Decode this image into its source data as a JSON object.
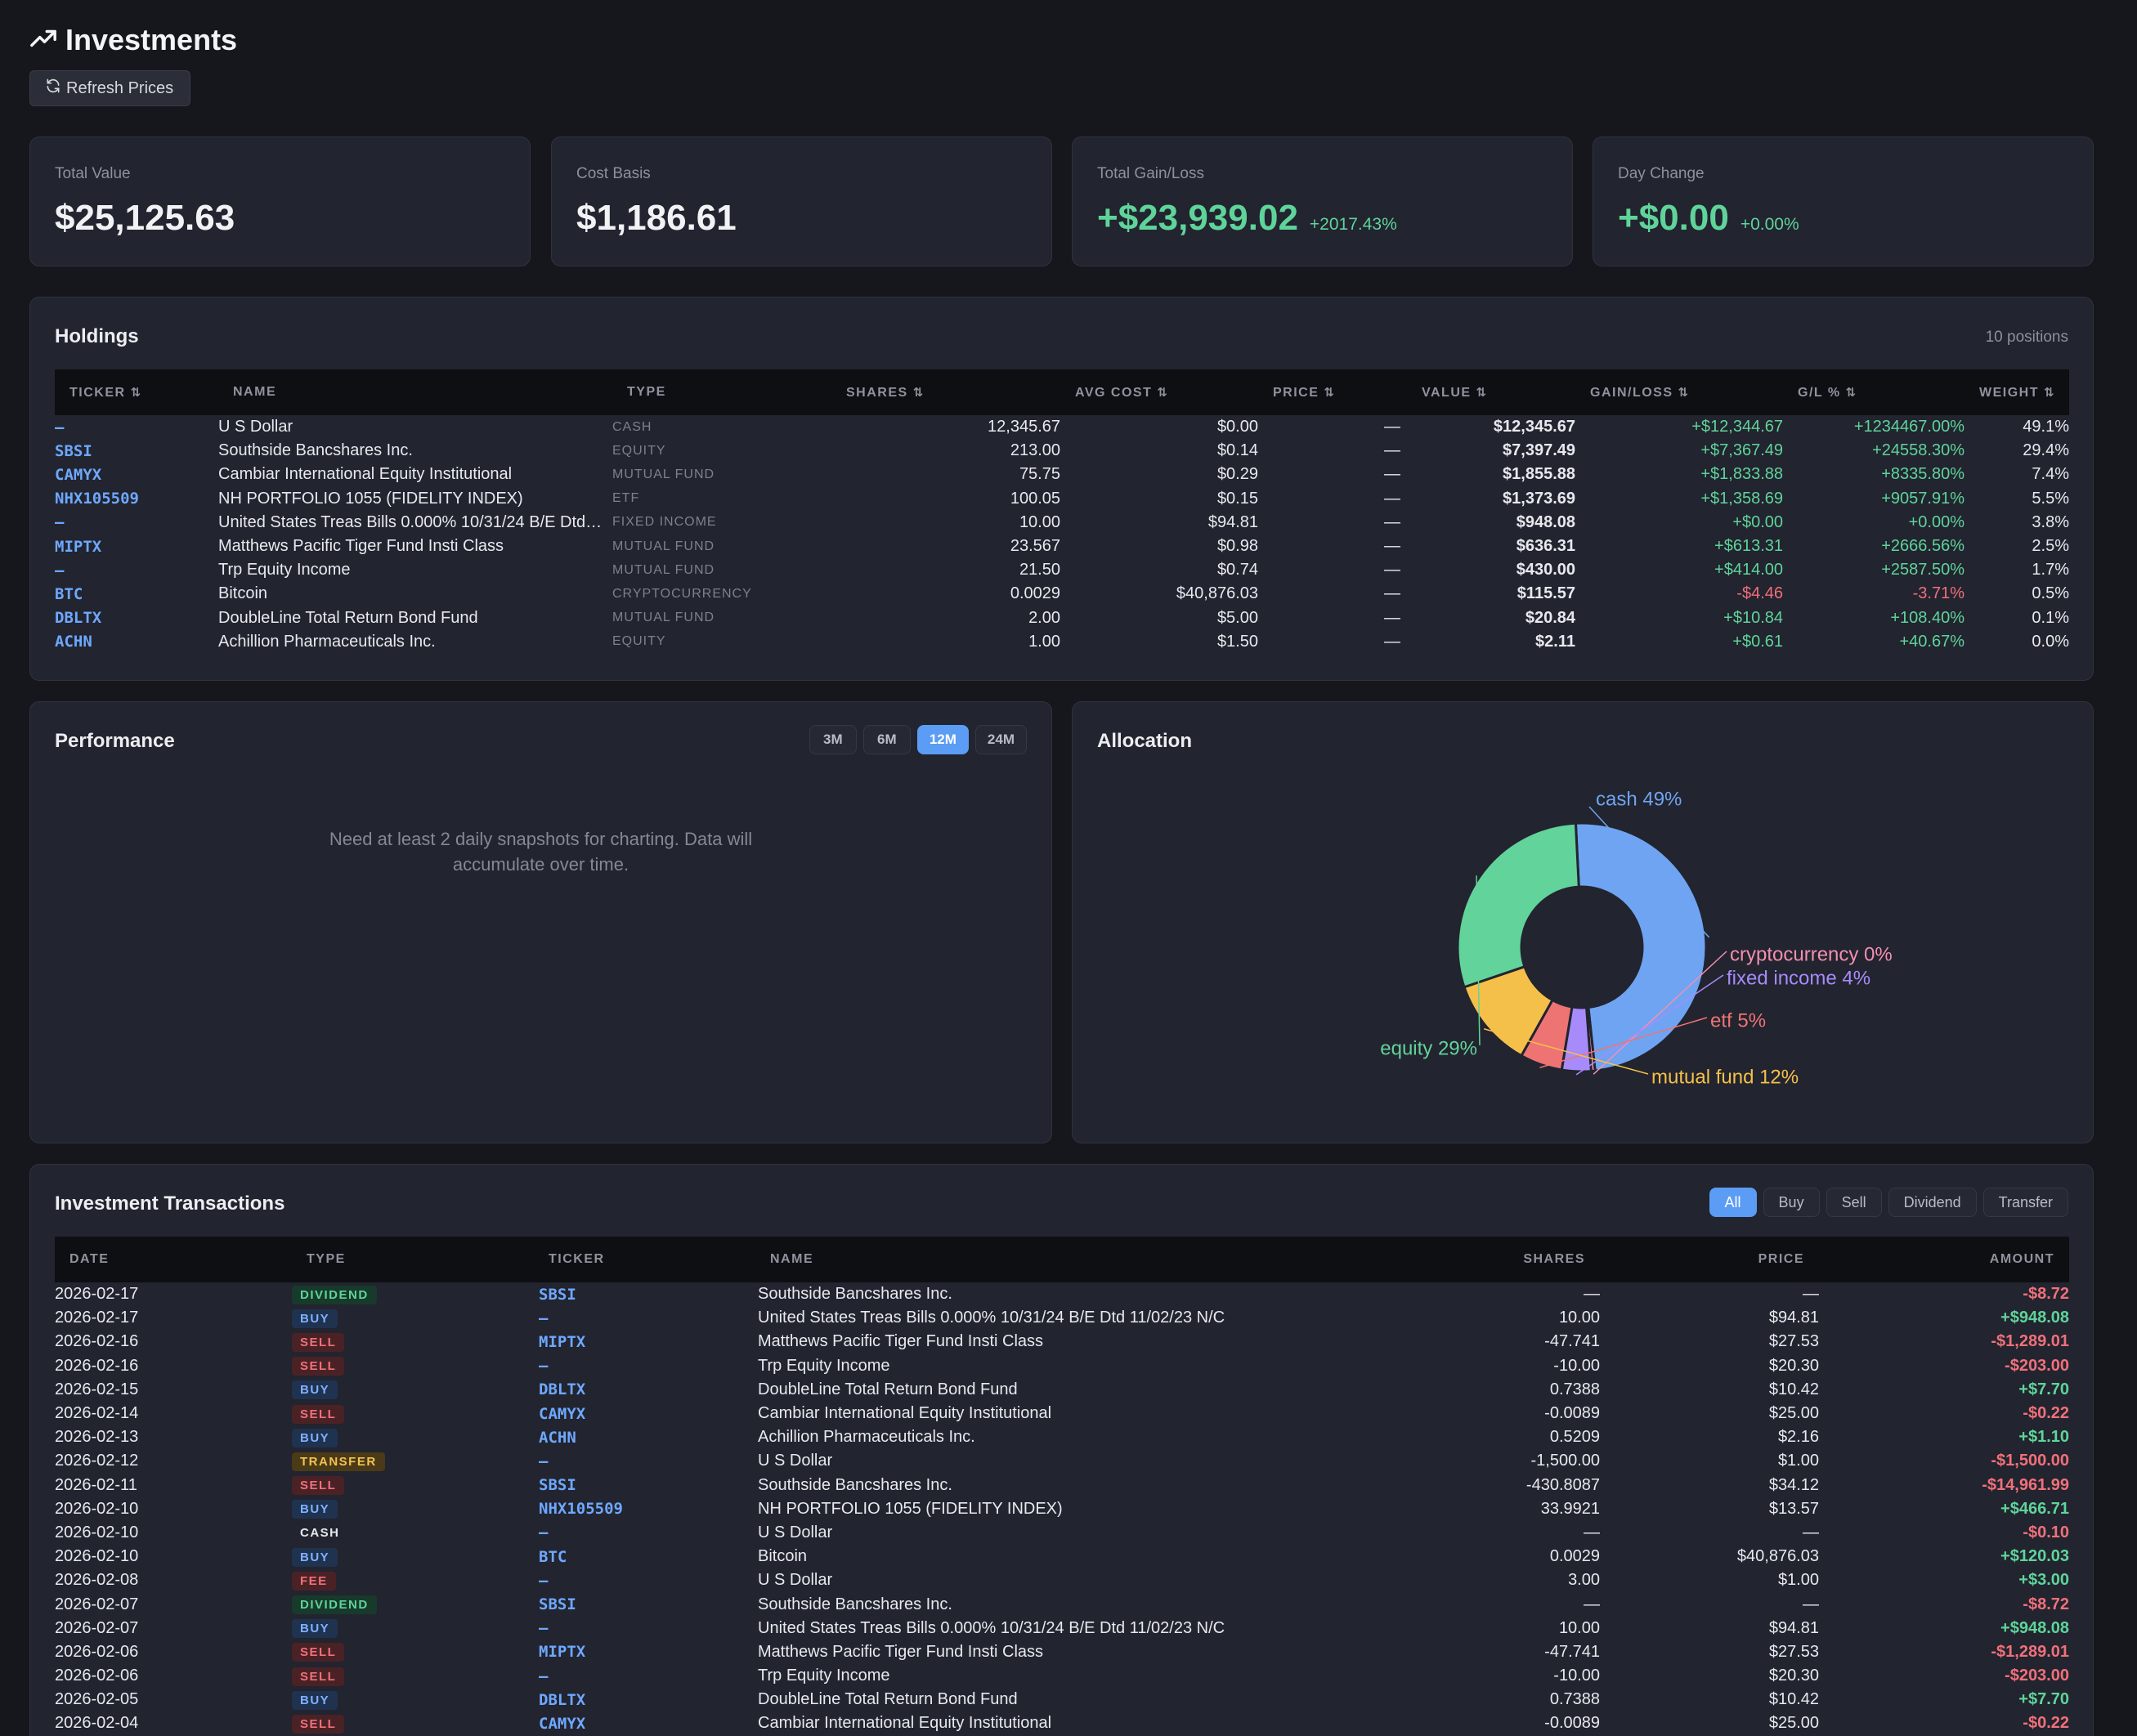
{
  "header": {
    "title": "Investments",
    "refresh_label": "Refresh Prices"
  },
  "stats": [
    {
      "label": "Total Value",
      "value": "$25,125.63",
      "pct": ""
    },
    {
      "label": "Cost Basis",
      "value": "$1,186.61",
      "pct": ""
    },
    {
      "label": "Total Gain/Loss",
      "value": "+$23,939.02",
      "pct": "+2017.43%"
    },
    {
      "label": "Day Change",
      "value": "+$0.00",
      "pct": "+0.00%"
    }
  ],
  "holdings": {
    "title": "Holdings",
    "count": "10 positions",
    "columns": [
      "Ticker",
      "Name",
      "Type",
      "Shares",
      "Avg Cost",
      "Price",
      "Value",
      "Gain/Loss",
      "G/L %",
      "Weight"
    ],
    "sortable": [
      true,
      false,
      false,
      true,
      true,
      true,
      true,
      true,
      true,
      true
    ],
    "rows": [
      [
        "—",
        "U S Dollar",
        "CASH",
        "12,345.67",
        "$0.00",
        "—",
        "$12,345.67",
        "+$12,344.67",
        "+1234467.00%",
        "49.1%"
      ],
      [
        "SBSI",
        "Southside Bancshares Inc.",
        "EQUITY",
        "213.00",
        "$0.14",
        "—",
        "$7,397.49",
        "+$7,367.49",
        "+24558.30%",
        "29.4%"
      ],
      [
        "CAMYX",
        "Cambiar International Equity Institutional",
        "MUTUAL FUND",
        "75.75",
        "$0.29",
        "—",
        "$1,855.88",
        "+$1,833.88",
        "+8335.80%",
        "7.4%"
      ],
      [
        "NHX105509",
        "NH PORTFOLIO 1055 (FIDELITY INDEX)",
        "ETF",
        "100.05",
        "$0.15",
        "—",
        "$1,373.69",
        "+$1,358.69",
        "+9057.91%",
        "5.5%"
      ],
      [
        "—",
        "United States Treas Bills 0.000% 10/31/24 B/E Dtd 11/02/23 N/C",
        "FIXED INCOME",
        "10.00",
        "$94.81",
        "—",
        "$948.08",
        "+$0.00",
        "+0.00%",
        "3.8%"
      ],
      [
        "MIPTX",
        "Matthews Pacific Tiger Fund Insti Class",
        "MUTUAL FUND",
        "23.567",
        "$0.98",
        "—",
        "$636.31",
        "+$613.31",
        "+2666.56%",
        "2.5%"
      ],
      [
        "—",
        "Trp Equity Income",
        "MUTUAL FUND",
        "21.50",
        "$0.74",
        "—",
        "$430.00",
        "+$414.00",
        "+2587.50%",
        "1.7%"
      ],
      [
        "BTC",
        "Bitcoin",
        "CRYPTOCURRENCY",
        "0.0029",
        "$40,876.03",
        "—",
        "$115.57",
        "-$4.46",
        "-3.71%",
        "0.5%"
      ],
      [
        "DBLTX",
        "DoubleLine Total Return Bond Fund",
        "MUTUAL FUND",
        "2.00",
        "$5.00",
        "—",
        "$20.84",
        "+$10.84",
        "+108.40%",
        "0.1%"
      ],
      [
        "ACHN",
        "Achillion Pharmaceuticals Inc.",
        "EQUITY",
        "1.00",
        "$1.50",
        "—",
        "$2.11",
        "+$0.61",
        "+40.67%",
        "0.0%"
      ]
    ]
  },
  "performance": {
    "title": "Performance",
    "ranges": [
      "3M",
      "6M",
      "12M",
      "24M"
    ],
    "active_range": "12M",
    "empty_message": "Need at least 2 daily snapshots for charting. Data will accumulate over time."
  },
  "allocation": {
    "title": "Allocation",
    "slices": [
      {
        "label": "cash 49%",
        "value": 49.1,
        "color": "#6fa4f2"
      },
      {
        "label": "cryptocurrency 0%",
        "value": 0.5,
        "color": "#f48fb1"
      },
      {
        "label": "fixed income 4%",
        "value": 3.8,
        "color": "#a78bfa"
      },
      {
        "label": "etf 5%",
        "value": 5.5,
        "color": "#ee7474"
      },
      {
        "label": "mutual fund 12%",
        "value": 11.7,
        "color": "#f5c04a"
      },
      {
        "label": "equity 29%",
        "value": 29.4,
        "color": "#62d39a"
      }
    ]
  },
  "transactions": {
    "title": "Investment Transactions",
    "filters": [
      "All",
      "Buy",
      "Sell",
      "Dividend",
      "Transfer"
    ],
    "active_filter": "All",
    "columns": [
      "Date",
      "Type",
      "Ticker",
      "Name",
      "Shares",
      "Price",
      "Amount"
    ],
    "rows": [
      [
        "2026-02-17",
        "DIVIDEND",
        "SBSI",
        "Southside Bancshares Inc.",
        "—",
        "—",
        "-$8.72"
      ],
      [
        "2026-02-17",
        "BUY",
        "—",
        "United States Treas Bills 0.000% 10/31/24 B/E Dtd 11/02/23 N/C",
        "10.00",
        "$94.81",
        "+$948.08"
      ],
      [
        "2026-02-16",
        "SELL",
        "MIPTX",
        "Matthews Pacific Tiger Fund Insti Class",
        "-47.741",
        "$27.53",
        "-$1,289.01"
      ],
      [
        "2026-02-16",
        "SELL",
        "—",
        "Trp Equity Income",
        "-10.00",
        "$20.30",
        "-$203.00"
      ],
      [
        "2026-02-15",
        "BUY",
        "DBLTX",
        "DoubleLine Total Return Bond Fund",
        "0.7388",
        "$10.42",
        "+$7.70"
      ],
      [
        "2026-02-14",
        "SELL",
        "CAMYX",
        "Cambiar International Equity Institutional",
        "-0.0089",
        "$25.00",
        "-$0.22"
      ],
      [
        "2026-02-13",
        "BUY",
        "ACHN",
        "Achillion Pharmaceuticals Inc.",
        "0.5209",
        "$2.16",
        "+$1.10"
      ],
      [
        "2026-02-12",
        "TRANSFER",
        "—",
        "U S Dollar",
        "-1,500.00",
        "$1.00",
        "-$1,500.00"
      ],
      [
        "2026-02-11",
        "SELL",
        "SBSI",
        "Southside Bancshares Inc.",
        "-430.8087",
        "$34.12",
        "-$14,961.99"
      ],
      [
        "2026-02-10",
        "BUY",
        "NHX105509",
        "NH PORTFOLIO 1055 (FIDELITY INDEX)",
        "33.9921",
        "$13.57",
        "+$466.71"
      ],
      [
        "2026-02-10",
        "CASH",
        "—",
        "U S Dollar",
        "—",
        "—",
        "-$0.10"
      ],
      [
        "2026-02-10",
        "BUY",
        "BTC",
        "Bitcoin",
        "0.0029",
        "$40,876.03",
        "+$120.03"
      ],
      [
        "2026-02-08",
        "FEE",
        "—",
        "U S Dollar",
        "3.00",
        "$1.00",
        "+$3.00"
      ],
      [
        "2026-02-07",
        "DIVIDEND",
        "SBSI",
        "Southside Bancshares Inc.",
        "—",
        "—",
        "-$8.72"
      ],
      [
        "2026-02-07",
        "BUY",
        "—",
        "United States Treas Bills 0.000% 10/31/24 B/E Dtd 11/02/23 N/C",
        "10.00",
        "$94.81",
        "+$948.08"
      ],
      [
        "2026-02-06",
        "SELL",
        "MIPTX",
        "Matthews Pacific Tiger Fund Insti Class",
        "-47.741",
        "$27.53",
        "-$1,289.01"
      ],
      [
        "2026-02-06",
        "SELL",
        "—",
        "Trp Equity Income",
        "-10.00",
        "$20.30",
        "-$203.00"
      ],
      [
        "2026-02-05",
        "BUY",
        "DBLTX",
        "DoubleLine Total Return Bond Fund",
        "0.7388",
        "$10.42",
        "+$7.70"
      ],
      [
        "2026-02-04",
        "SELL",
        "CAMYX",
        "Cambiar International Equity Institutional",
        "-0.0089",
        "$25.00",
        "-$0.22"
      ]
    ]
  },
  "colors": {
    "positive": "#5fd49a",
    "negative": "#f0707a",
    "accent": "#5b9cf5",
    "ticker": "#6ea8fe"
  },
  "icons": {
    "title_icon": "trending-up-icon",
    "refresh_icon": "refresh-icon",
    "sort_icon": "sort-icon"
  }
}
